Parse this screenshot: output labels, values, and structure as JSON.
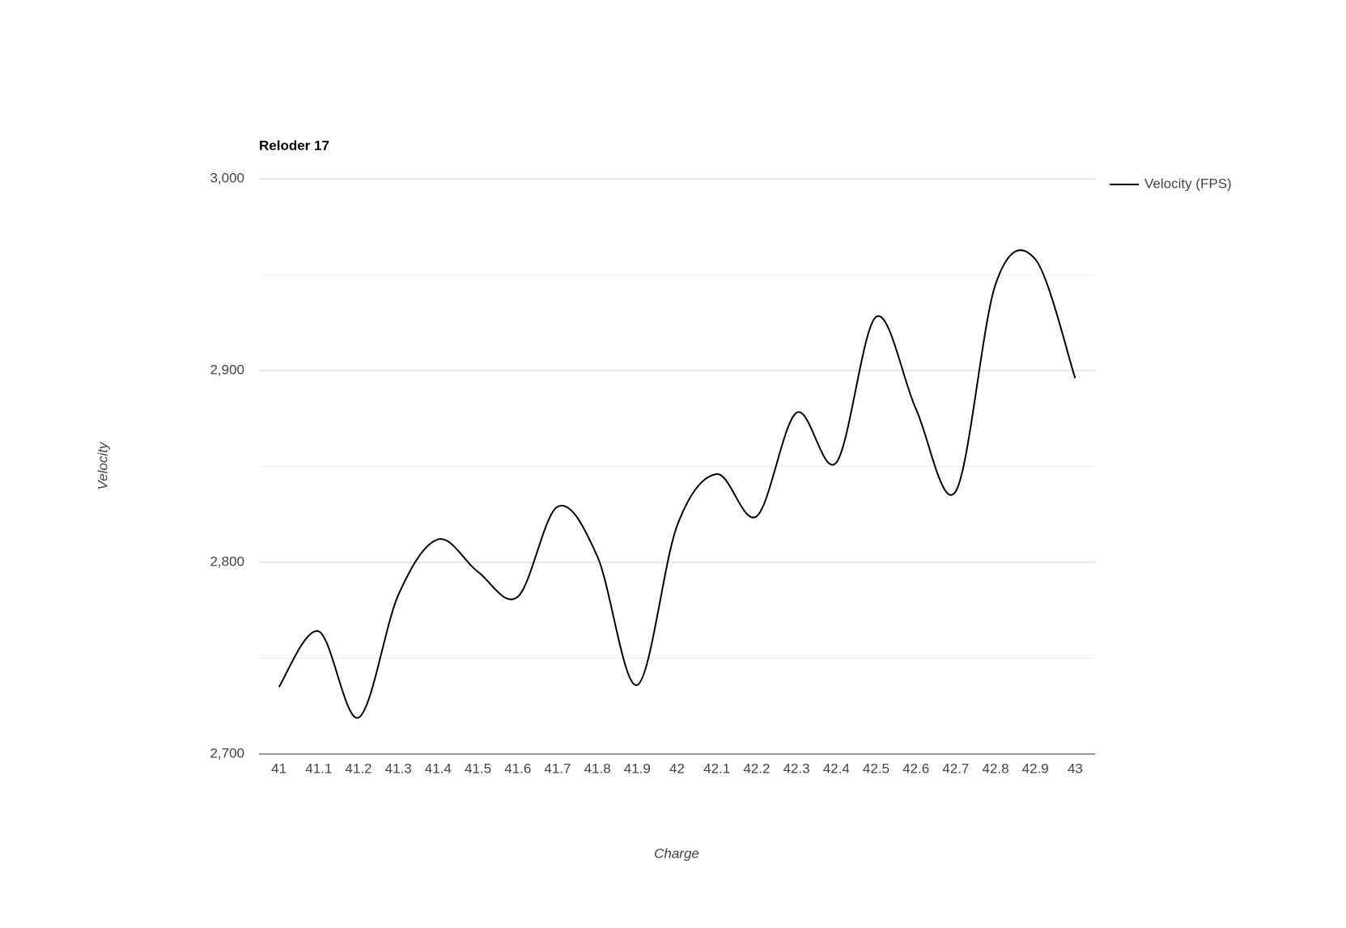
{
  "chart_data": {
    "type": "line",
    "title": "Reloder 17",
    "x_label": "Charge",
    "y_label": "Velocity",
    "categories": [
      "41",
      "41.1",
      "41.2",
      "41.3",
      "41.4",
      "41.5",
      "41.6",
      "41.7",
      "41.8",
      "41.9",
      "42",
      "42.1",
      "42.2",
      "42.3",
      "42.4",
      "42.5",
      "42.6",
      "42.7",
      "42.8",
      "42.9",
      "43"
    ],
    "series": [
      {
        "name": "Velocity (FPS)",
        "color": "#000000",
        "values": [
          2735,
          2764,
          2719,
          2783,
          2812,
          2795,
          2782,
          2829,
          2803,
          2736,
          2819,
          2846,
          2824,
          2878,
          2852,
          2928,
          2880,
          2837,
          2945,
          2958,
          2896
        ]
      }
    ],
    "ylim": [
      2700,
      3000
    ],
    "yticks": [
      {
        "value": 2700,
        "label": "2,700"
      },
      {
        "value": 2800,
        "label": "2,800"
      },
      {
        "value": 2900,
        "label": "2,900"
      },
      {
        "value": 3000,
        "label": "3,000"
      }
    ],
    "minor_yticks": [
      2750,
      2850,
      2950
    ],
    "grid": true,
    "smooth": true,
    "legend": "right"
  }
}
